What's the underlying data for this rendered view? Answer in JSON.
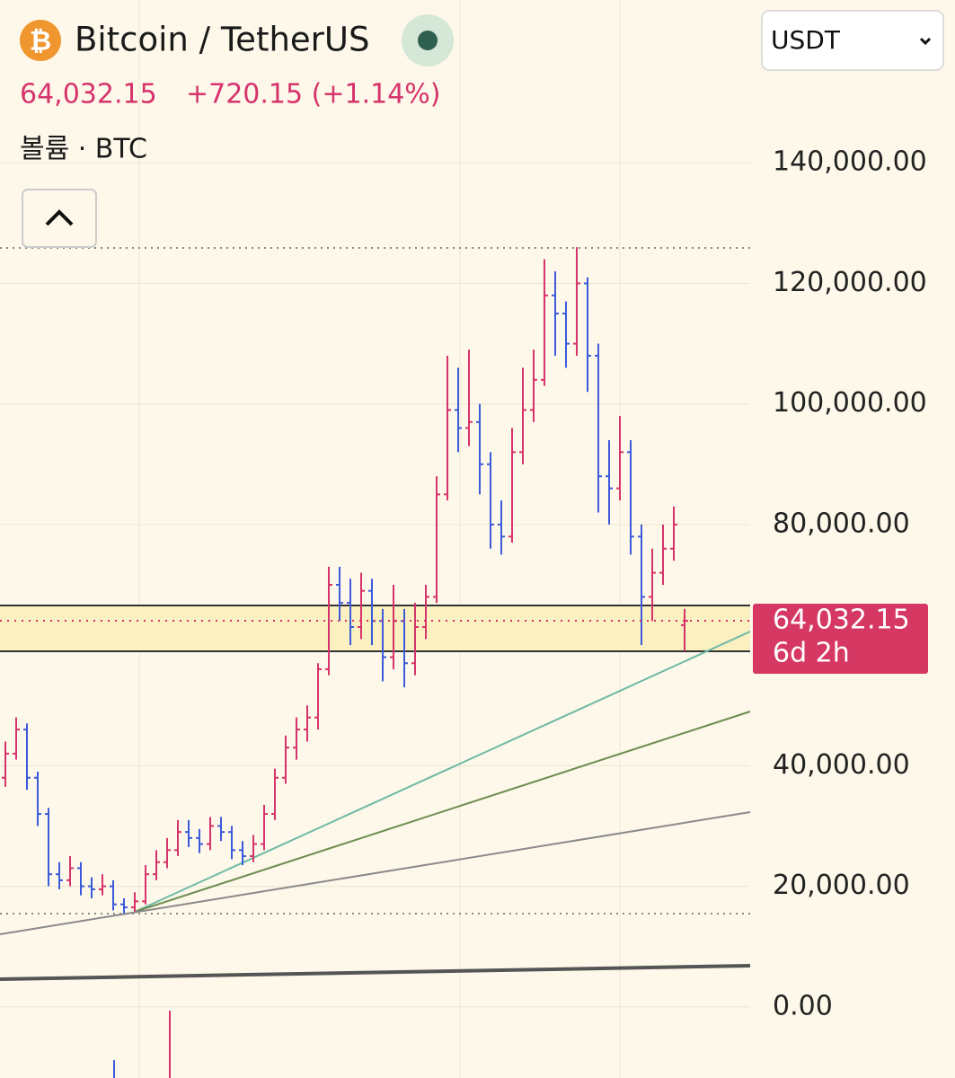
{
  "header": {
    "title": "Bitcoin / TetherUS",
    "change": "+720.15 (+1.14%)",
    "volume_label": "볼륨 · BTC",
    "currency": "USDT"
  },
  "chart_data": {
    "type": "ohlc",
    "up_color": "#d6336c",
    "down_color": "#3b5bdb",
    "ylim": [
      -11800,
      167000
    ],
    "yticks": [
      {
        "value": 140000,
        "label": "140,000.00"
      },
      {
        "value": 120000,
        "label": "120,000.00"
      },
      {
        "value": 100000,
        "label": "100,000.00"
      },
      {
        "value": 80000,
        "label": "80,000.00"
      },
      {
        "value": 40000,
        "label": "40,000.00"
      },
      {
        "value": 20000,
        "label": "20,000.00"
      },
      {
        "value": 0,
        "label": "0.00"
      }
    ],
    "grid": true,
    "last_price": {
      "value": 64032.15,
      "label": "64,032.15"
    },
    "countdown": "6d 2h",
    "open": [
      38000,
      42000,
      46000,
      38000,
      32000,
      22000,
      21000,
      23000,
      20000,
      19500,
      20000,
      17000,
      16500,
      17500,
      22000,
      24000,
      26000,
      29000,
      28000,
      27000,
      30000,
      29000,
      26000,
      25000,
      27000,
      32000,
      38000,
      43000,
      46000,
      48000,
      56000,
      70000,
      67000,
      63000,
      69000,
      64000,
      58000,
      64000,
      57000,
      63000,
      68000,
      85000,
      99000,
      96000,
      97000,
      90000,
      80000,
      78000,
      92000,
      99000,
      104000,
      118000,
      115000,
      110000,
      120000,
      108000,
      88000,
      86000,
      92000,
      78000,
      68000,
      72000,
      76000,
      63312
    ],
    "high": [
      44000,
      48000,
      47000,
      39000,
      33000,
      24000,
      25000,
      24000,
      21500,
      22000,
      21000,
      18000,
      19000,
      23500,
      26000,
      28000,
      31000,
      31000,
      29500,
      31500,
      31500,
      30000,
      27500,
      28500,
      33500,
      39500,
      45000,
      48000,
      50000,
      57000,
      73000,
      73000,
      71000,
      72000,
      71000,
      66000,
      70000,
      66000,
      67000,
      70000,
      88000,
      108000,
      106000,
      109000,
      100000,
      92000,
      84000,
      96000,
      106000,
      109000,
      124000,
      122000,
      117000,
      126000,
      121000,
      110000,
      94000,
      98000,
      94000,
      80000,
      76000,
      80000,
      83000,
      66000
    ],
    "low": [
      36500,
      41000,
      36000,
      30000,
      20000,
      19500,
      20000,
      18500,
      18000,
      18500,
      16000,
      15500,
      15800,
      17000,
      21000,
      23000,
      25000,
      26500,
      25500,
      26000,
      27500,
      24500,
      23500,
      24000,
      26000,
      31000,
      37000,
      41000,
      44000,
      46000,
      55000,
      64000,
      60000,
      61000,
      60000,
      54000,
      56000,
      53000,
      55000,
      61000,
      67000,
      84000,
      92000,
      93000,
      85000,
      76000,
      75000,
      77000,
      90000,
      97000,
      103000,
      108000,
      106000,
      108000,
      102000,
      82000,
      80000,
      84000,
      75000,
      60000,
      64000,
      70000,
      74000,
      59000
    ],
    "close": [
      42000,
      46000,
      38000,
      32000,
      22000,
      21000,
      23000,
      20000,
      19500,
      20000,
      17000,
      16500,
      17500,
      22000,
      24000,
      26000,
      29000,
      28000,
      27000,
      30000,
      29000,
      26000,
      25000,
      27000,
      32000,
      38000,
      43000,
      46000,
      48000,
      56000,
      70000,
      67000,
      63000,
      69000,
      64000,
      58000,
      64000,
      57000,
      63000,
      68000,
      85000,
      99000,
      96000,
      97000,
      90000,
      80000,
      78000,
      92000,
      99000,
      104000,
      118000,
      115000,
      110000,
      120000,
      108000,
      88000,
      86000,
      92000,
      78000,
      68000,
      72000,
      76000,
      80000,
      64032.15
    ]
  }
}
